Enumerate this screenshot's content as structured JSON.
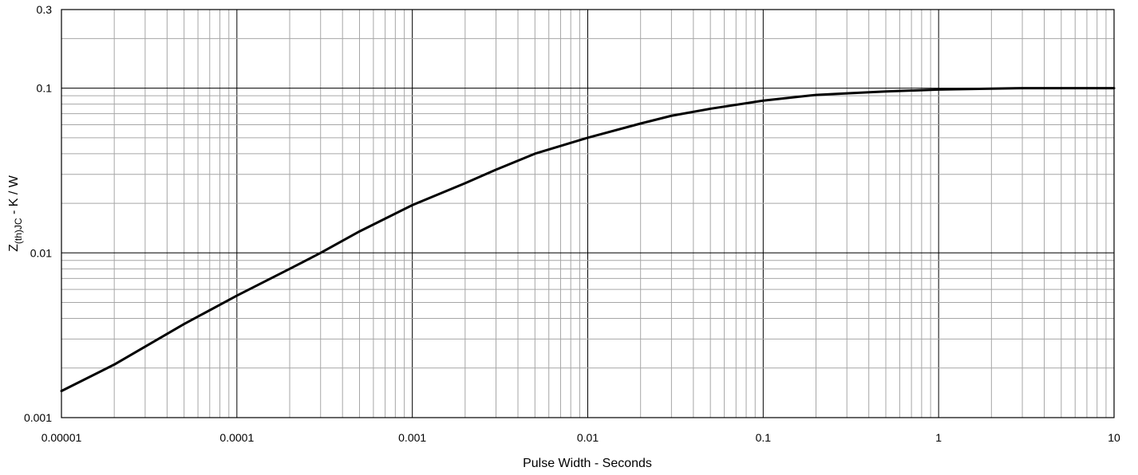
{
  "chart_data": {
    "type": "line",
    "title": "",
    "xlabel": "Pulse Width - Seconds",
    "ylabel": {
      "main": "Z",
      "subscript": "(th)JC",
      "suffix": " - K / W"
    },
    "x_scale": "log",
    "y_scale": "log",
    "xlim": [
      1e-05,
      10
    ],
    "ylim": [
      0.001,
      0.3
    ],
    "x_ticks": [
      {
        "value": 1e-05,
        "label": "0.00001"
      },
      {
        "value": 0.0001,
        "label": "0.0001"
      },
      {
        "value": 0.001,
        "label": "0.001"
      },
      {
        "value": 0.01,
        "label": "0.01"
      },
      {
        "value": 0.1,
        "label": "0.1"
      },
      {
        "value": 1,
        "label": "1"
      },
      {
        "value": 10,
        "label": "10"
      }
    ],
    "y_ticks": [
      {
        "value": 0.001,
        "label": "0.001"
      },
      {
        "value": 0.01,
        "label": "0.01"
      },
      {
        "value": 0.1,
        "label": "0.1"
      },
      {
        "value": 0.3,
        "label": "0.3"
      }
    ],
    "grid": true,
    "legend": "none",
    "line_color": "#000000",
    "series": [
      {
        "points": [
          {
            "x": 1e-05,
            "y": 0.00145
          },
          {
            "x": 2e-05,
            "y": 0.0021
          },
          {
            "x": 5e-05,
            "y": 0.0037
          },
          {
            "x": 0.0001,
            "y": 0.0055
          },
          {
            "x": 0.0002,
            "y": 0.008
          },
          {
            "x": 0.0003,
            "y": 0.01
          },
          {
            "x": 0.0005,
            "y": 0.0135
          },
          {
            "x": 0.001,
            "y": 0.0195
          },
          {
            "x": 0.002,
            "y": 0.0265
          },
          {
            "x": 0.003,
            "y": 0.032
          },
          {
            "x": 0.005,
            "y": 0.04
          },
          {
            "x": 0.01,
            "y": 0.05
          },
          {
            "x": 0.02,
            "y": 0.061
          },
          {
            "x": 0.03,
            "y": 0.068
          },
          {
            "x": 0.05,
            "y": 0.075
          },
          {
            "x": 0.1,
            "y": 0.084
          },
          {
            "x": 0.2,
            "y": 0.091
          },
          {
            "x": 0.3,
            "y": 0.093
          },
          {
            "x": 0.5,
            "y": 0.0955
          },
          {
            "x": 1,
            "y": 0.098
          },
          {
            "x": 3,
            "y": 0.1
          },
          {
            "x": 10,
            "y": 0.1
          }
        ]
      }
    ]
  }
}
